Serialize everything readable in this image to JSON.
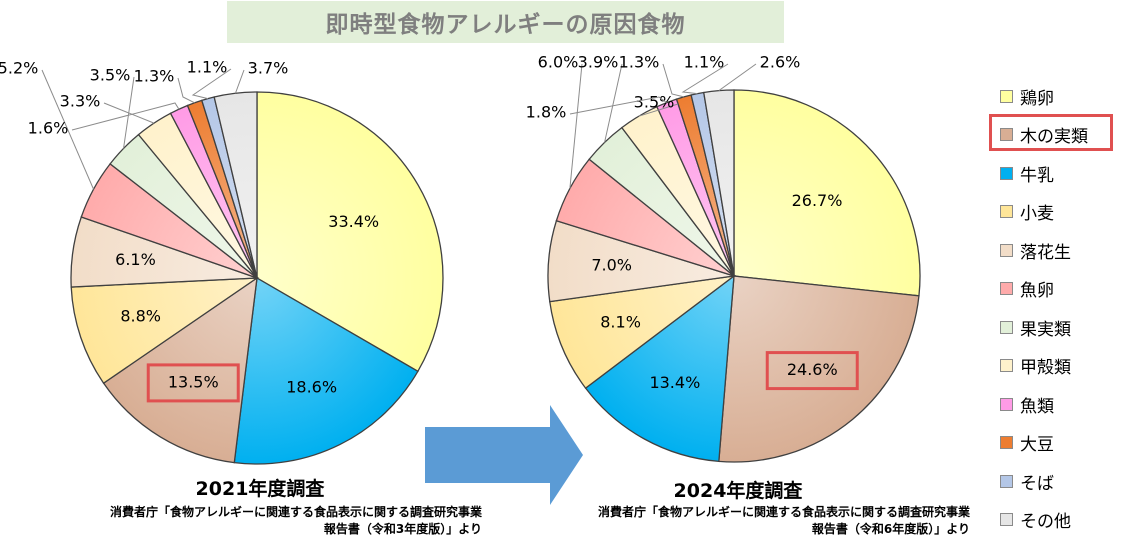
{
  "header": {
    "title": "即時型食物アレルギーの原因食物"
  },
  "categories": [
    "鶏卵",
    "木の実類",
    "牛乳",
    "小麦",
    "落花生",
    "魚卵",
    "果実類",
    "甲殻類",
    "魚類",
    "大豆",
    "そば",
    "その他"
  ],
  "colors": [
    "#ffffa0",
    "#d8ae94",
    "#00b0f0",
    "#ffe699",
    "#f2ddc8",
    "#ffabab",
    "#e2f0d9",
    "#fff2cc",
    "#ff9be6",
    "#ed7d31",
    "#b4c7e7",
    "#e6e6e6"
  ],
  "chart_data": [
    {
      "type": "pie",
      "title": "2021年度調査",
      "categories": [
        "鶏卵",
        "牛乳",
        "木の実類",
        "小麦",
        "落花生",
        "魚卵",
        "果実類",
        "甲殻類",
        "魚類",
        "大豆",
        "そば",
        "その他"
      ],
      "values": [
        33.4,
        18.6,
        13.5,
        8.8,
        6.1,
        5.2,
        3.5,
        3.3,
        1.6,
        1.3,
        1.1,
        3.7
      ],
      "labels": [
        "33.4%",
        "18.6%",
        "13.5%",
        "8.8%",
        "6.1%",
        "5.2%",
        "3.5%",
        "3.3%",
        "1.6%",
        "1.3%",
        "1.1%",
        "3.7%"
      ],
      "source": [
        "消費者庁「食物アレルギーに関連する食品表示に関する調査研究事業",
        "報告書（令和3年度版）」より"
      ]
    },
    {
      "type": "pie",
      "title": "2024年度調査",
      "categories": [
        "鶏卵",
        "木の実類",
        "牛乳",
        "小麦",
        "落花生",
        "魚卵",
        "果実類",
        "甲殻類",
        "魚類",
        "大豆",
        "そば",
        "その他"
      ],
      "values": [
        26.7,
        24.6,
        13.4,
        8.1,
        7.0,
        6.0,
        3.9,
        3.5,
        1.8,
        1.3,
        1.1,
        2.6
      ],
      "labels": [
        "26.7%",
        "24.6%",
        "13.4%",
        "8.1%",
        "7.0%",
        "6.0%",
        "3.9%",
        "3.5%",
        "1.8%",
        "1.3%",
        "1.1%",
        "2.6%"
      ],
      "source": [
        "消費者庁「食物アレルギーに関連する食品表示に関する調査研究事業",
        "報告書（令和6年度版）」より"
      ]
    }
  ],
  "legend": {
    "items": [
      "鶏卵",
      "木の実類",
      "牛乳",
      "小麦",
      "落花生",
      "魚卵",
      "果実類",
      "甲殻類",
      "魚類",
      "大豆",
      "そば",
      "その他"
    ],
    "highlighted": "木の実類"
  },
  "highlight_color": "#e05050",
  "arrow_color": "#5b9bd5"
}
